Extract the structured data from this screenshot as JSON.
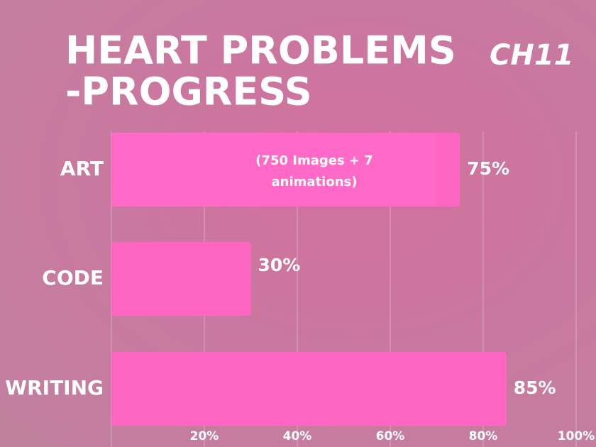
{
  "chart_data": {
    "type": "bar",
    "orientation": "horizontal",
    "title": [
      "HEART PROBLEMS",
      "-PROGRESS"
    ],
    "subtitle": "CH11",
    "annotation": [
      "(750 Images + 7",
      "animations)"
    ],
    "categories": [
      "ART",
      "CODE",
      "WRITING"
    ],
    "values": [
      75,
      30,
      85
    ],
    "value_labels": [
      "75%",
      "30%",
      "85%"
    ],
    "color": "#ff66c4",
    "xlim": [
      0,
      100
    ],
    "xticks": [
      {
        "value": 20,
        "label": "20%"
      },
      {
        "value": 40,
        "label": "40%"
      },
      {
        "value": 60,
        "label": "60%"
      },
      {
        "value": 80,
        "label": "80%"
      },
      {
        "value": 100,
        "label": "100%"
      }
    ],
    "grid": true
  }
}
